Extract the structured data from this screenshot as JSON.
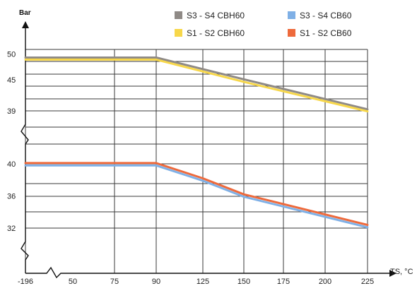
{
  "chart_data": {
    "type": "line",
    "ylabel": "Bar",
    "xlabel": "TS, °C",
    "x_ticks": [
      "-196",
      "50",
      "75",
      "90",
      "125",
      "150",
      "175",
      "200",
      "225"
    ],
    "y_ticks_upper": [
      "50",
      "45",
      "39"
    ],
    "y_ticks_lower": [
      "40",
      "36",
      "32"
    ],
    "y_axis_break": true,
    "x_axis_break": true,
    "grid": true,
    "legend_position": "top-right",
    "series": [
      {
        "name": "S3 - S4 CBH60",
        "color": "#8f8a86",
        "panel": "upper",
        "x": [
          "-196",
          "90",
          "150",
          "225"
        ],
        "y": [
          49.3,
          49.3,
          45.1,
          39.3
        ]
      },
      {
        "name": "S1 - S2 CBH60",
        "color": "#f7d74a",
        "panel": "upper",
        "x": [
          "-196",
          "90",
          "150",
          "225"
        ],
        "y": [
          48.9,
          48.9,
          44.6,
          38.9
        ]
      },
      {
        "name": "S3 - S4 CB60",
        "color": "#7fb0e6",
        "panel": "lower",
        "x": [
          "-196",
          "90",
          "125",
          "150",
          "225"
        ],
        "y": [
          39.8,
          39.8,
          37.9,
          35.9,
          32.1
        ]
      },
      {
        "name": "S1 - S2 CB60",
        "color": "#ee6a3c",
        "panel": "lower",
        "x": [
          "-196",
          "90",
          "125",
          "150",
          "225"
        ],
        "y": [
          40.1,
          40.1,
          38.2,
          36.2,
          32.4
        ]
      }
    ]
  }
}
